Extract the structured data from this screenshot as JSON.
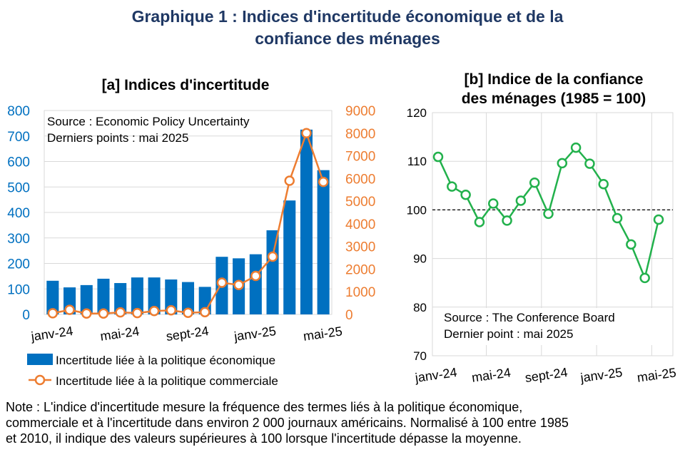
{
  "title": {
    "line1": "Graphique 1 : Indices d'incertitude économique et de la",
    "line2": "confiance des ménages"
  },
  "chart_data": [
    {
      "type": "bar",
      "title": "[a] Indices d'incertitude",
      "categories": [
        "janv-24",
        "févr-24",
        "mars-24",
        "avr-24",
        "mai-24",
        "juin-24",
        "juil-24",
        "août-24",
        "sept-24",
        "oct-24",
        "nov-24",
        "déc-24",
        "janv-25",
        "févr-25",
        "mars-25",
        "avr-25",
        "mai-25"
      ],
      "x_tick_labels": [
        "janv-24",
        "mai-24",
        "sept-24",
        "janv-25",
        "mai-25"
      ],
      "annotation": [
        "Source : Economic Policy Uncertainty",
        "Derniers points : mai 2025"
      ],
      "series": [
        {
          "name": "Incertitude liée à la politique économique",
          "type": "bar",
          "axis": "left",
          "color": "#0070c0",
          "values": [
            132,
            106,
            115,
            140,
            123,
            145,
            145,
            137,
            127,
            108,
            226,
            220,
            236,
            330,
            447,
            725,
            566
          ]
        },
        {
          "name": "Incertitude liée à la politique commerciale",
          "type": "line",
          "axis": "right",
          "color": "#ed7d31",
          "values": [
            50,
            200,
            40,
            40,
            90,
            60,
            150,
            180,
            70,
            100,
            1400,
            1300,
            1700,
            2550,
            5900,
            8000,
            5850
          ]
        }
      ],
      "left_axis": {
        "ylim": [
          0,
          800
        ],
        "ticks": [
          "0",
          "100",
          "200",
          "300",
          "400",
          "500",
          "600",
          "700",
          "800"
        ],
        "color": "#0070c0"
      },
      "right_axis": {
        "ylim": [
          0,
          9000
        ],
        "ticks": [
          "0",
          "1000",
          "2000",
          "3000",
          "4000",
          "5000",
          "6000",
          "7000",
          "8000",
          "9000"
        ],
        "color": "#ed7d31"
      },
      "legend": [
        "Incertitude liée à la politique économique",
        "Incertitude liée à la politique commerciale"
      ],
      "legend_position": "bottom"
    },
    {
      "type": "line",
      "title": [
        "[b] Indice de la confiance",
        "des ménages (1985 = 100)"
      ],
      "categories": [
        "janv-24",
        "févr-24",
        "mars-24",
        "avr-24",
        "mai-24",
        "juin-24",
        "juil-24",
        "août-24",
        "sept-24",
        "oct-24",
        "nov-24",
        "déc-24",
        "janv-25",
        "févr-25",
        "mars-25",
        "avr-25",
        "mai-25"
      ],
      "x_tick_labels": [
        "janv-24",
        "mai-24",
        "sept-24",
        "janv-25",
        "mai-25"
      ],
      "series": [
        {
          "name": "Indice de la confiance des ménages",
          "color": "#22b14c",
          "values": [
            110.9,
            104.8,
            103.1,
            97.5,
            101.3,
            97.8,
            101.9,
            105.6,
            99.2,
            109.6,
            112.8,
            109.5,
            105.3,
            98.3,
            92.9,
            86.0,
            98.0
          ]
        }
      ],
      "reference_line": 100,
      "ylim": [
        70,
        120
      ],
      "y_ticks": [
        "70",
        "80",
        "90",
        "100",
        "110",
        "120"
      ],
      "annotation": [
        "Source : The Conference Board",
        "Dernier point : mai 2025"
      ],
      "grid": true
    }
  ],
  "note": {
    "line1": "Note : L'indice d'incertitude mesure la fréquence des termes liés à la politique économique,",
    "line2": "commerciale et à l'incertitude dans environ 2 000 journaux américains. Normalisé à 100 entre 1985",
    "line3": "et 2010, il indique des valeurs supérieures à 100 lorsque l'incertitude dépasse la moyenne."
  }
}
